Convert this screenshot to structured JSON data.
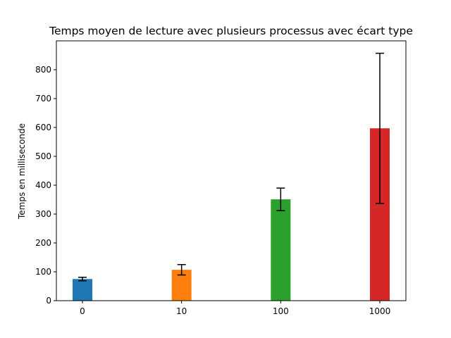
{
  "chart_data": {
    "type": "bar",
    "title": "Temps moyen de lecture avec plusieurs processus avec écart type",
    "xlabel": "",
    "ylabel": "Temps en milliseconde",
    "categories": [
      "0",
      "10",
      "100",
      "1000"
    ],
    "values": [
      75,
      107,
      351,
      597
    ],
    "errors": [
      6,
      18,
      39,
      260
    ],
    "colors": [
      "#1f77b4",
      "#ff7f0e",
      "#2ca02c",
      "#d62728"
    ],
    "ylim": [
      0,
      900
    ],
    "yticks": [
      0,
      100,
      200,
      300,
      400,
      500,
      600,
      700,
      800
    ],
    "grid": false,
    "legend": "none"
  }
}
